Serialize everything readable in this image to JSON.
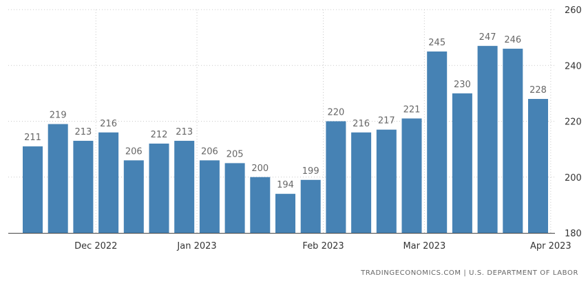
{
  "chart_data": {
    "type": "bar",
    "series": [
      {
        "values": [
          211,
          219,
          213,
          216,
          206,
          212,
          213,
          206,
          205,
          200,
          194,
          199,
          220,
          216,
          217,
          221,
          245,
          230,
          247,
          246,
          228
        ],
        "color": "#4682b4"
      }
    ],
    "data_labels": [
      "211",
      "219",
      "213",
      "216",
      "206",
      "212",
      "213",
      "206",
      "205",
      "200",
      "194",
      "199",
      "220",
      "216",
      "217",
      "221",
      "245",
      "230",
      "247",
      "246",
      "228"
    ],
    "x_ticks": [
      {
        "label": "Dec 2022",
        "after_bar": 2
      },
      {
        "label": "Jan 2023",
        "after_bar": 6
      },
      {
        "label": "Feb 2023",
        "after_bar": 11
      },
      {
        "label": "Mar 2023",
        "after_bar": 15
      },
      {
        "label": "Apr 2023",
        "after_bar": 20
      }
    ],
    "y_ticks": [
      180,
      200,
      220,
      240,
      260
    ],
    "ylim": [
      180,
      260
    ],
    "y_axis_side": "right",
    "grid": true,
    "title": "",
    "xlabel": "",
    "ylabel": ""
  },
  "footer": {
    "source": "TRADINGECONOMICS.COM | U.S. DEPARTMENT OF LABOR"
  }
}
